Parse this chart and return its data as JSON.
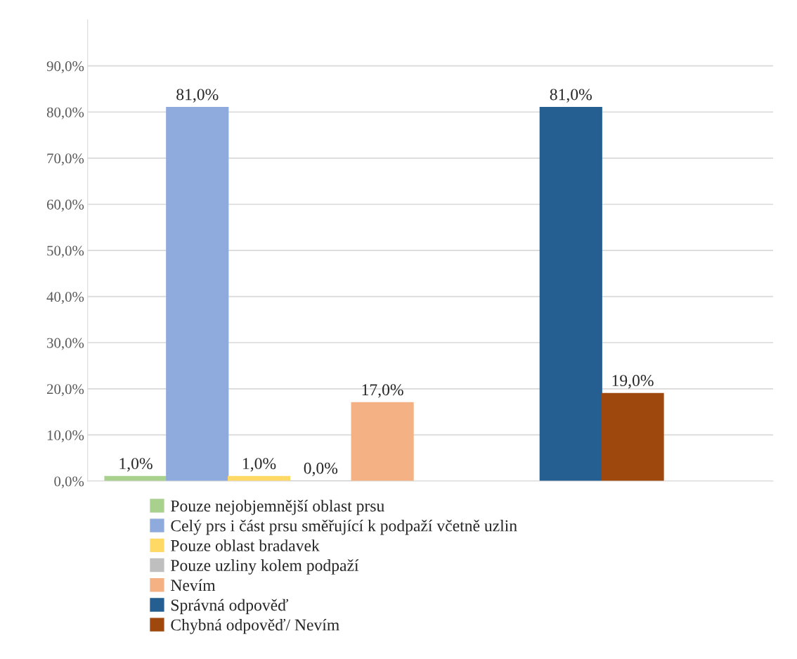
{
  "chart_data": {
    "type": "bar",
    "categories": [
      null,
      null
    ],
    "series": [
      {
        "name": "Pouze nejobjemnější oblast prsu",
        "color": "#a9d18e",
        "values": [
          1,
          null
        ],
        "value_labels": [
          "1,0%",
          null
        ]
      },
      {
        "name": "Celý prs i část prsu směřující k podpaží včetně uzlin",
        "color": "#8faadc",
        "values": [
          81,
          null
        ],
        "value_labels": [
          "81,0%",
          null
        ]
      },
      {
        "name": "Pouze oblast bradavek",
        "color": "#ffd966",
        "values": [
          1,
          null
        ],
        "value_labels": [
          "1,0%",
          null
        ]
      },
      {
        "name": "Pouze uzliny kolem podpaží",
        "color": "#bfbfbf",
        "values": [
          0,
          null
        ],
        "value_labels": [
          "0,0%",
          null
        ]
      },
      {
        "name": "Nevím",
        "color": "#f4b183",
        "values": [
          17,
          null
        ],
        "value_labels": [
          "17,0%",
          null
        ]
      },
      {
        "name": "Správná odpověď",
        "color": "#255e91",
        "values": [
          null,
          81
        ],
        "value_labels": [
          null,
          "81,0%"
        ]
      },
      {
        "name": "Chybná odpověď/ Nevím",
        "color": "#9e480e",
        "values": [
          null,
          19
        ],
        "value_labels": [
          null,
          "19,0%"
        ]
      }
    ],
    "ylim": [
      0,
      100
    ],
    "yticks": [
      {
        "value": 0,
        "label": "0,0%"
      },
      {
        "value": 10,
        "label": "10,0%"
      },
      {
        "value": 20,
        "label": "20,0%"
      },
      {
        "value": 30,
        "label": "30,0%"
      },
      {
        "value": 40,
        "label": "40,0%"
      },
      {
        "value": 50,
        "label": "50,0%"
      },
      {
        "value": 60,
        "label": "60,0%"
      },
      {
        "value": 70,
        "label": "70,0%"
      },
      {
        "value": 80,
        "label": "80,0%"
      },
      {
        "value": 90,
        "label": "90,0%"
      }
    ],
    "grid": "y",
    "legend": "bottom"
  }
}
